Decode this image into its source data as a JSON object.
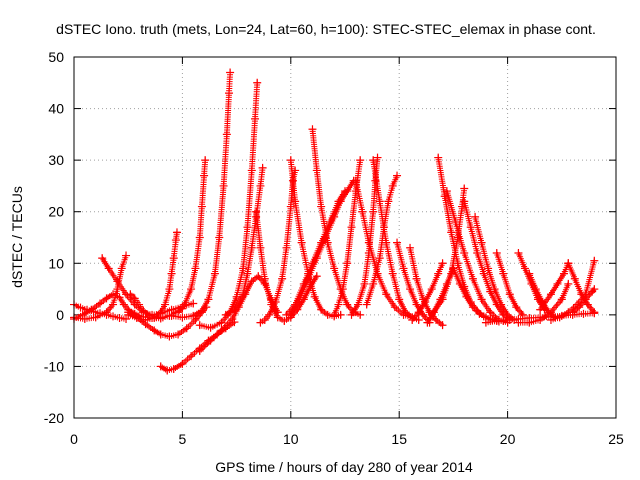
{
  "chart_data": {
    "type": "scatter",
    "title": "dSTEC Iono. truth (mets, Lon=24, Lat=60, h=100): STEC-STEC_elemax in phase cont.",
    "xlabel": "GPS time / hours of day 280 of year 2014",
    "ylabel": "dSTEC  / TECUs",
    "xlim": [
      0,
      25
    ],
    "ylim": [
      -20,
      50
    ],
    "x_ticks": [
      "0",
      "5",
      "10",
      "15",
      "20",
      "25"
    ],
    "y_ticks": [
      "-20",
      "-10",
      "0",
      "10",
      "20",
      "30",
      "40",
      "50"
    ],
    "grid": true,
    "legend": "none",
    "marker": "plus",
    "color": "#ff0000",
    "series": [
      {
        "x": [
          0.0,
          0.3,
          0.6,
          0.9,
          1.2,
          1.5,
          1.8,
          2.1,
          2.4
        ],
        "y": [
          2.0,
          1.4,
          1.0,
          0.6,
          0.3,
          0.0,
          -0.3,
          -0.6,
          -0.8
        ]
      },
      {
        "x": [
          0.0,
          0.5,
          1.0,
          1.5,
          1.8,
          2.0,
          2.2,
          2.4
        ],
        "y": [
          -0.5,
          -0.8,
          -0.5,
          0.5,
          2.0,
          5.0,
          9.0,
          11.5
        ]
      },
      {
        "x": [
          1.3,
          1.6,
          2.0,
          2.4,
          2.8,
          3.2,
          3.6,
          4.0,
          4.5,
          5.0,
          5.5
        ],
        "y": [
          11.0,
          9.0,
          6.5,
          4.0,
          2.0,
          0.5,
          0.0,
          0.3,
          1.0,
          1.6,
          2.2
        ]
      },
      {
        "x": [
          0.0,
          0.4,
          0.8,
          1.2,
          1.5,
          1.8,
          2.1,
          2.3,
          2.5,
          2.8,
          3.2,
          3.6,
          4.0
        ],
        "y": [
          -0.8,
          0.0,
          1.0,
          2.2,
          3.2,
          4.0,
          3.4,
          2.0,
          1.0,
          0.2,
          -0.4,
          -0.6,
          -0.7
        ]
      },
      {
        "x": [
          2.6,
          2.8,
          3.0,
          3.2,
          3.5,
          3.8,
          4.1,
          4.4,
          4.7,
          5.0
        ],
        "y": [
          4.0,
          3.2,
          2.0,
          0.8,
          -0.2,
          -0.4,
          -0.5,
          -0.2,
          0.5,
          1.2
        ]
      },
      {
        "x": [
          2.5,
          2.9,
          3.3,
          3.7,
          4.0,
          4.2,
          4.4,
          4.5,
          4.6,
          4.7,
          4.75
        ],
        "y": [
          0.0,
          -0.6,
          -1.0,
          -0.6,
          0.5,
          2.0,
          5.0,
          8.0,
          11.0,
          14.5,
          16.0
        ]
      },
      {
        "x": [
          2.5,
          2.9,
          3.3,
          3.7,
          4.0,
          4.4,
          4.8,
          5.2,
          5.6,
          5.9,
          6.1
        ],
        "y": [
          0.5,
          -0.5,
          -1.8,
          -3.0,
          -3.8,
          -4.2,
          -3.8,
          -2.6,
          -1.0,
          0.5,
          1.5
        ]
      },
      {
        "x": [
          4.0,
          4.3,
          4.6,
          5.0,
          5.4,
          5.8,
          6.2,
          6.6,
          7.0,
          7.4
        ],
        "y": [
          -10.0,
          -10.8,
          -10.5,
          -9.5,
          -8.0,
          -6.5,
          -5.0,
          -3.8,
          -2.6,
          -1.4
        ]
      },
      {
        "x": [
          4.8,
          5.1,
          5.4,
          5.6,
          5.8,
          5.9,
          6.0,
          6.05
        ],
        "y": [
          0.5,
          2.0,
          5.0,
          9.0,
          15.0,
          21.0,
          27.0,
          30.0
        ]
      },
      {
        "x": [
          4.5,
          5.0,
          5.5,
          5.9,
          6.2,
          6.5,
          6.7,
          6.9,
          7.05,
          7.15,
          7.2
        ],
        "y": [
          -0.2,
          -0.5,
          -0.2,
          0.8,
          3.0,
          8.0,
          15.0,
          25.0,
          35.0,
          43.0,
          47.0
        ]
      },
      {
        "x": [
          5.8,
          6.3,
          6.8,
          7.2,
          7.5,
          7.8,
          8.0,
          8.2,
          8.35,
          8.45
        ],
        "y": [
          -2.0,
          -2.5,
          -1.5,
          0.5,
          3.5,
          9.0,
          17.0,
          28.0,
          38.0,
          45.0
        ]
      },
      {
        "x": [
          5.8,
          6.3,
          6.8,
          7.3,
          7.6,
          7.9,
          8.2,
          8.5,
          8.8,
          9.1,
          9.4
        ],
        "y": [
          -7.0,
          -5.0,
          -3.0,
          -0.8,
          1.5,
          4.0,
          6.5,
          7.5,
          6.0,
          3.0,
          0.5
        ]
      },
      {
        "x": [
          7.0,
          7.4,
          7.8,
          8.0,
          8.2,
          8.4,
          8.6,
          8.7
        ],
        "y": [
          0.0,
          1.0,
          4.0,
          8.0,
          13.0,
          19.0,
          25.0,
          28.5
        ]
      },
      {
        "x": [
          8.4,
          8.6,
          8.8,
          9.1,
          9.4,
          9.7,
          10.0,
          10.3,
          10.6,
          10.9,
          11.2
        ],
        "y": [
          20.0,
          13.0,
          7.0,
          2.0,
          -0.5,
          -1.2,
          -0.5,
          1.0,
          3.0,
          5.5,
          7.5
        ]
      },
      {
        "x": [
          8.6,
          8.8,
          9.0,
          9.3,
          9.6,
          9.8,
          10.0,
          10.1,
          10.2
        ],
        "y": [
          -1.5,
          -1.0,
          0.0,
          2.5,
          7.0,
          13.0,
          21.0,
          26.0,
          28.0
        ]
      },
      {
        "x": [
          10.0,
          10.2,
          10.5,
          10.8,
          11.1,
          11.4,
          11.7,
          12.0,
          12.3
        ],
        "y": [
          30.0,
          22.0,
          14.0,
          8.0,
          3.5,
          1.0,
          0.0,
          -0.3,
          0.0
        ]
      },
      {
        "x": [
          9.8,
          10.2,
          10.6,
          11.0,
          11.4,
          11.8,
          12.2,
          12.5
        ],
        "y": [
          0.0,
          2.0,
          6.0,
          10.0,
          14.0,
          18.0,
          22.0,
          24.0
        ]
      },
      {
        "x": [
          10.0,
          10.4,
          10.8,
          11.2,
          11.6,
          12.0,
          12.3,
          12.6,
          12.9
        ],
        "y": [
          0.0,
          3.0,
          7.0,
          11.0,
          15.0,
          19.0,
          22.0,
          24.0,
          26.0
        ]
      },
      {
        "x": [
          11.0,
          11.2,
          11.4,
          11.7,
          12.0,
          12.3,
          12.6,
          12.9,
          13.2
        ],
        "y": [
          36.0,
          28.0,
          21.0,
          14.0,
          9.0,
          5.0,
          2.0,
          0.5,
          0.0
        ]
      },
      {
        "x": [
          12.0,
          12.2,
          12.4,
          12.6,
          12.8,
          13.0,
          13.2
        ],
        "y": [
          0.0,
          2.0,
          5.0,
          10.0,
          17.0,
          24.0,
          30.0
        ]
      },
      {
        "x": [
          13.0,
          13.3,
          13.6,
          14.0,
          14.4,
          14.8,
          15.2,
          15.6
        ],
        "y": [
          26.0,
          20.0,
          14.0,
          8.0,
          4.0,
          1.5,
          0.0,
          -0.5
        ]
      },
      {
        "x": [
          12.8,
          13.1,
          13.4,
          13.6,
          13.8,
          13.9,
          14.0
        ],
        "y": [
          0.0,
          2.0,
          6.0,
          12.0,
          20.0,
          26.0,
          30.5
        ]
      },
      {
        "x": [
          13.8,
          14.1,
          14.4,
          14.7,
          15.0,
          15.3,
          15.6,
          15.9
        ],
        "y": [
          30.0,
          22.0,
          14.0,
          8.0,
          3.0,
          0.5,
          -0.5,
          -1.0
        ]
      },
      {
        "x": [
          13.5,
          13.8,
          14.1,
          14.3,
          14.5,
          14.7,
          14.9
        ],
        "y": [
          2.0,
          6.0,
          11.0,
          17.0,
          22.0,
          25.0,
          27.0
        ]
      },
      {
        "x": [
          14.9,
          15.2,
          15.5,
          15.8,
          16.1,
          16.4
        ],
        "y": [
          14.0,
          9.0,
          5.0,
          2.0,
          0.0,
          -1.5
        ]
      },
      {
        "x": [
          15.5,
          15.8,
          16.1,
          16.4,
          16.7,
          17.0
        ],
        "y": [
          13.0,
          7.0,
          3.0,
          0.5,
          -1.0,
          -2.0
        ]
      },
      {
        "x": [
          15.6,
          15.9,
          16.2,
          16.5,
          16.8,
          17.0
        ],
        "y": [
          -1.0,
          0.5,
          2.5,
          5.0,
          8.0,
          10.0
        ]
      },
      {
        "x": [
          16.3,
          16.6,
          16.9,
          17.2,
          17.5
        ],
        "y": [
          -1.5,
          0.5,
          3.0,
          6.0,
          9.0
        ]
      },
      {
        "x": [
          16.8,
          17.1,
          17.4,
          17.7,
          18.0,
          18.3,
          18.6,
          18.9,
          19.2,
          19.5,
          19.8
        ],
        "y": [
          30.5,
          23.0,
          16.0,
          10.0,
          5.5,
          2.5,
          0.8,
          -0.3,
          -0.8,
          -1.0,
          -1.2
        ]
      },
      {
        "x": [
          17.5,
          17.8,
          18.1,
          18.4,
          18.7,
          19.0,
          19.3,
          19.6
        ],
        "y": [
          9.0,
          6.0,
          3.5,
          1.5,
          0.2,
          -0.5,
          -1.0,
          -1.3
        ]
      },
      {
        "x": [
          16.5,
          17.0,
          17.4,
          17.7,
          17.9,
          18.0
        ],
        "y": [
          0.0,
          3.0,
          8.0,
          15.0,
          21.0,
          24.5
        ]
      },
      {
        "x": [
          17.2,
          17.6,
          18.0,
          18.4,
          18.8,
          19.2,
          19.6,
          20.0
        ],
        "y": [
          24.0,
          18.0,
          12.0,
          7.0,
          3.0,
          0.5,
          -1.0,
          -1.5
        ]
      },
      {
        "x": [
          18.0,
          18.3,
          18.6,
          18.9,
          19.2,
          19.5,
          19.8,
          20.1
        ],
        "y": [
          22.0,
          17.0,
          12.0,
          8.0,
          4.5,
          2.0,
          0.0,
          -1.0
        ]
      },
      {
        "x": [
          18.5,
          18.8,
          19.1,
          19.4,
          19.7,
          20.0,
          20.3
        ],
        "y": [
          19.0,
          14.0,
          9.0,
          5.0,
          2.0,
          0.0,
          -1.0
        ]
      },
      {
        "x": [
          19.5,
          19.8,
          20.1,
          20.4,
          20.7
        ],
        "y": [
          12.0,
          8.0,
          4.0,
          1.5,
          0.0
        ]
      },
      {
        "x": [
          20.5,
          20.8,
          21.1,
          21.4,
          21.7
        ],
        "y": [
          12.0,
          9.0,
          6.0,
          3.0,
          1.0
        ]
      },
      {
        "x": [
          21.0,
          21.3,
          21.6,
          21.9,
          22.2
        ],
        "y": [
          8.0,
          5.0,
          2.5,
          0.5,
          -0.5
        ]
      },
      {
        "x": [
          20.5,
          21.0,
          21.5,
          22.0,
          22.5,
          22.8
        ],
        "y": [
          -1.5,
          -1.5,
          -1.0,
          0.5,
          3.0,
          6.0
        ]
      },
      {
        "x": [
          21.5,
          22.0,
          22.3,
          22.6,
          22.8
        ],
        "y": [
          1.0,
          4.0,
          6.0,
          8.0,
          10.0
        ]
      },
      {
        "x": [
          22.8,
          23.1,
          23.4,
          23.7,
          24.0
        ],
        "y": [
          10.0,
          7.0,
          4.0,
          2.0,
          0.5
        ]
      },
      {
        "x": [
          22.0,
          22.4,
          22.8,
          23.2,
          23.6,
          24.0
        ],
        "y": [
          -1.0,
          -0.5,
          0.5,
          2.0,
          4.0,
          10.5
        ]
      },
      {
        "x": [
          23.0,
          23.3,
          23.6,
          23.9,
          24.0
        ],
        "y": [
          0.5,
          1.5,
          3.0,
          4.5,
          5.0
        ]
      },
      {
        "x": [
          19.0,
          19.5,
          20.0,
          20.5,
          21.0,
          21.5,
          22.0,
          22.5,
          23.0,
          23.5,
          24.0
        ],
        "y": [
          -1.5,
          -1.2,
          -1.0,
          -0.8,
          -0.6,
          -0.5,
          -0.4,
          -0.2,
          0.0,
          0.2,
          0.3
        ]
      }
    ]
  }
}
